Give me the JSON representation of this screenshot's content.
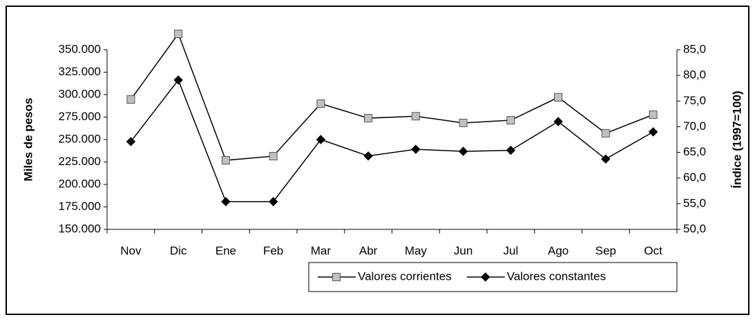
{
  "chart_data": {
    "type": "line",
    "y_label": "Miles de pesos",
    "y2_label": "Índice (1997=100)",
    "categories": [
      "Nov",
      "Dic",
      "Ene",
      "Feb",
      "Mar",
      "Abr",
      "May",
      "Jun",
      "Jul",
      "Ago",
      "Sep",
      "Oct"
    ],
    "series": [
      {
        "name": "Valores corrientes",
        "color": "#000000",
        "marker": "square",
        "marker_color": "#c0c0c0",
        "values": [
          294600,
          367700,
          226900,
          231500,
          290000,
          273800,
          276000,
          268500,
          271500,
          297000,
          257000,
          277700
        ]
      },
      {
        "name": "Valores constantes",
        "color": "#000000",
        "marker": "diamond",
        "marker_color": "#000000",
        "axis": "y2",
        "values": [
          67.1,
          79.1,
          55.4,
          55.4,
          67.5,
          64.3,
          65.6,
          65.2,
          65.4,
          71.0,
          63.7,
          69.0
        ]
      }
    ],
    "ylim": [
      150000,
      350000
    ],
    "yticks": [
      {
        "value": 150000,
        "label": "150.000"
      },
      {
        "value": 175000,
        "label": "175.000"
      },
      {
        "value": 200000,
        "label": "200.000"
      },
      {
        "value": 225000,
        "label": "225.000"
      },
      {
        "value": 250000,
        "label": "250.000"
      },
      {
        "value": 275000,
        "label": "275.000"
      },
      {
        "value": 300000,
        "label": "300.000"
      },
      {
        "value": 325000,
        "label": "325.000"
      },
      {
        "value": 350000,
        "label": "350.000"
      }
    ],
    "y2lim": [
      50,
      85
    ],
    "y2ticks": [
      {
        "value": 50,
        "label": "50,0"
      },
      {
        "value": 55,
        "label": "55,0"
      },
      {
        "value": 60,
        "label": "60,0"
      },
      {
        "value": 65,
        "label": "65,0"
      },
      {
        "value": 70,
        "label": "70,0"
      },
      {
        "value": 75,
        "label": "75,0"
      },
      {
        "value": 80,
        "label": "80,0"
      },
      {
        "value": 85,
        "label": "85,0"
      }
    ],
    "grid": false,
    "legend_position": "bottom"
  }
}
